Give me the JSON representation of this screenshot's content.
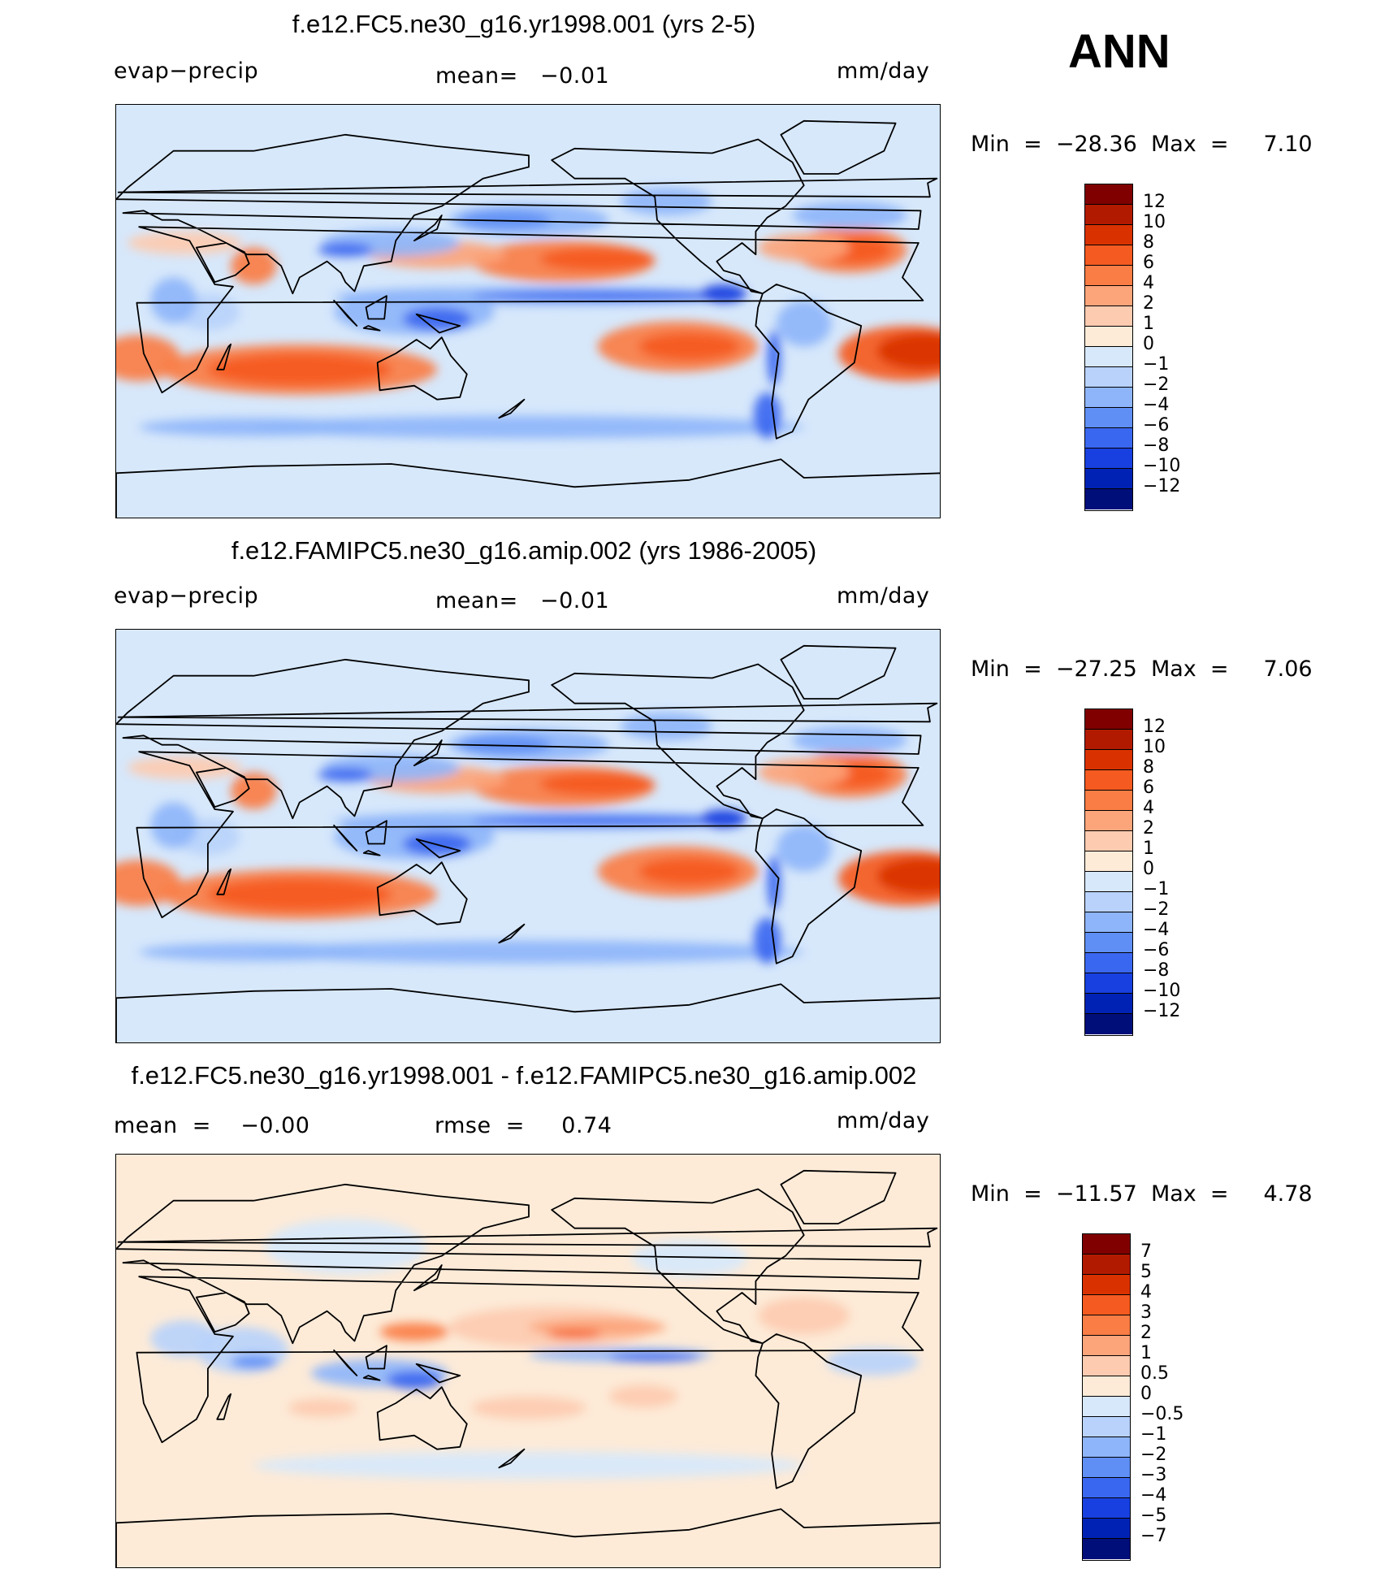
{
  "season": "ANN",
  "units": "mm/day",
  "panels": [
    {
      "title": "f.e12.FC5.ne30_g16.yr1998.001 (yrs 2-5)",
      "left_label": "evap−precip",
      "mid_label": "mean=   −0.01",
      "right_label": "mm/day",
      "minmax": "Min  =  −28.36  Max  =     7.10",
      "min": -28.36,
      "max": 7.1
    },
    {
      "title": "f.e12.FAMIPC5.ne30_g16.amip.002 (yrs 1986-2005)",
      "left_label": "evap−precip",
      "mid_label": "mean=   −0.01",
      "right_label": "mm/day",
      "minmax": "Min  =  −27.25  Max  =     7.06",
      "min": -27.25,
      "max": 7.06
    },
    {
      "title": "f.e12.FC5.ne30_g16.yr1998.001 - f.e12.FAMIPC5.ne30_g16.amip.002",
      "left_label": "mean  =    −0.00",
      "mid_label": "rmse  =     0.74",
      "right_label": "mm/day",
      "minmax": "Min  =  −11.57  Max  =     4.78",
      "min": -11.57,
      "max": 4.78
    }
  ],
  "chart_data": [
    {
      "type": "heatmap",
      "title": "f.e12.FC5.ne30_g16.yr1998.001 (yrs 2-5)",
      "variable": "evap−precip",
      "units": "mm/day",
      "mean": -0.01,
      "min": -28.36,
      "max": 7.1,
      "colorbar_levels": [
        "12",
        "10",
        "8",
        "6",
        "4",
        "2",
        "1",
        "0",
        "−1",
        "−2",
        "−4",
        "−6",
        "−8",
        "−10",
        "−12"
      ],
      "colorbar_colors": [
        "#800000",
        "#b21a00",
        "#d93200",
        "#f55a20",
        "#fa7d45",
        "#fca47a",
        "#fdcbb0",
        "#fdebd8",
        "#d7e8fb",
        "#b8d2fb",
        "#8eb5fa",
        "#5f8ff5",
        "#3a67f0",
        "#1840e0",
        "#0022b4",
        "#000e7a"
      ]
    },
    {
      "type": "heatmap",
      "title": "f.e12.FAMIPC5.ne30_g16.amip.002 (yrs 1986-2005)",
      "variable": "evap−precip",
      "units": "mm/day",
      "mean": -0.01,
      "min": -27.25,
      "max": 7.06,
      "colorbar_levels": [
        "12",
        "10",
        "8",
        "6",
        "4",
        "2",
        "1",
        "0",
        "−1",
        "−2",
        "−4",
        "−6",
        "−8",
        "−10",
        "−12"
      ],
      "colorbar_colors": [
        "#800000",
        "#b21a00",
        "#d93200",
        "#f55a20",
        "#fa7d45",
        "#fca47a",
        "#fdcbb0",
        "#fdebd8",
        "#d7e8fb",
        "#b8d2fb",
        "#8eb5fa",
        "#5f8ff5",
        "#3a67f0",
        "#1840e0",
        "#0022b4",
        "#000e7a"
      ]
    },
    {
      "type": "heatmap",
      "title": "f.e12.FC5.ne30_g16.yr1998.001 - f.e12.FAMIPC5.ne30_g16.amip.002",
      "units": "mm/day",
      "mean": -0.0,
      "rmse": 0.74,
      "min": -11.57,
      "max": 4.78,
      "colorbar_levels": [
        "7",
        "5",
        "4",
        "3",
        "2",
        "1",
        "0.5",
        "0",
        "−0.5",
        "−1",
        "−2",
        "−3",
        "−4",
        "−5",
        "−7"
      ],
      "colorbar_colors": [
        "#800000",
        "#b21a00",
        "#d93200",
        "#f55a20",
        "#fa7d45",
        "#fca47a",
        "#fdcbb0",
        "#fdebd8",
        "#d7e8fb",
        "#b8d2fb",
        "#8eb5fa",
        "#5f8ff5",
        "#3a67f0",
        "#1840e0",
        "#0022b4",
        "#000e7a"
      ]
    }
  ]
}
